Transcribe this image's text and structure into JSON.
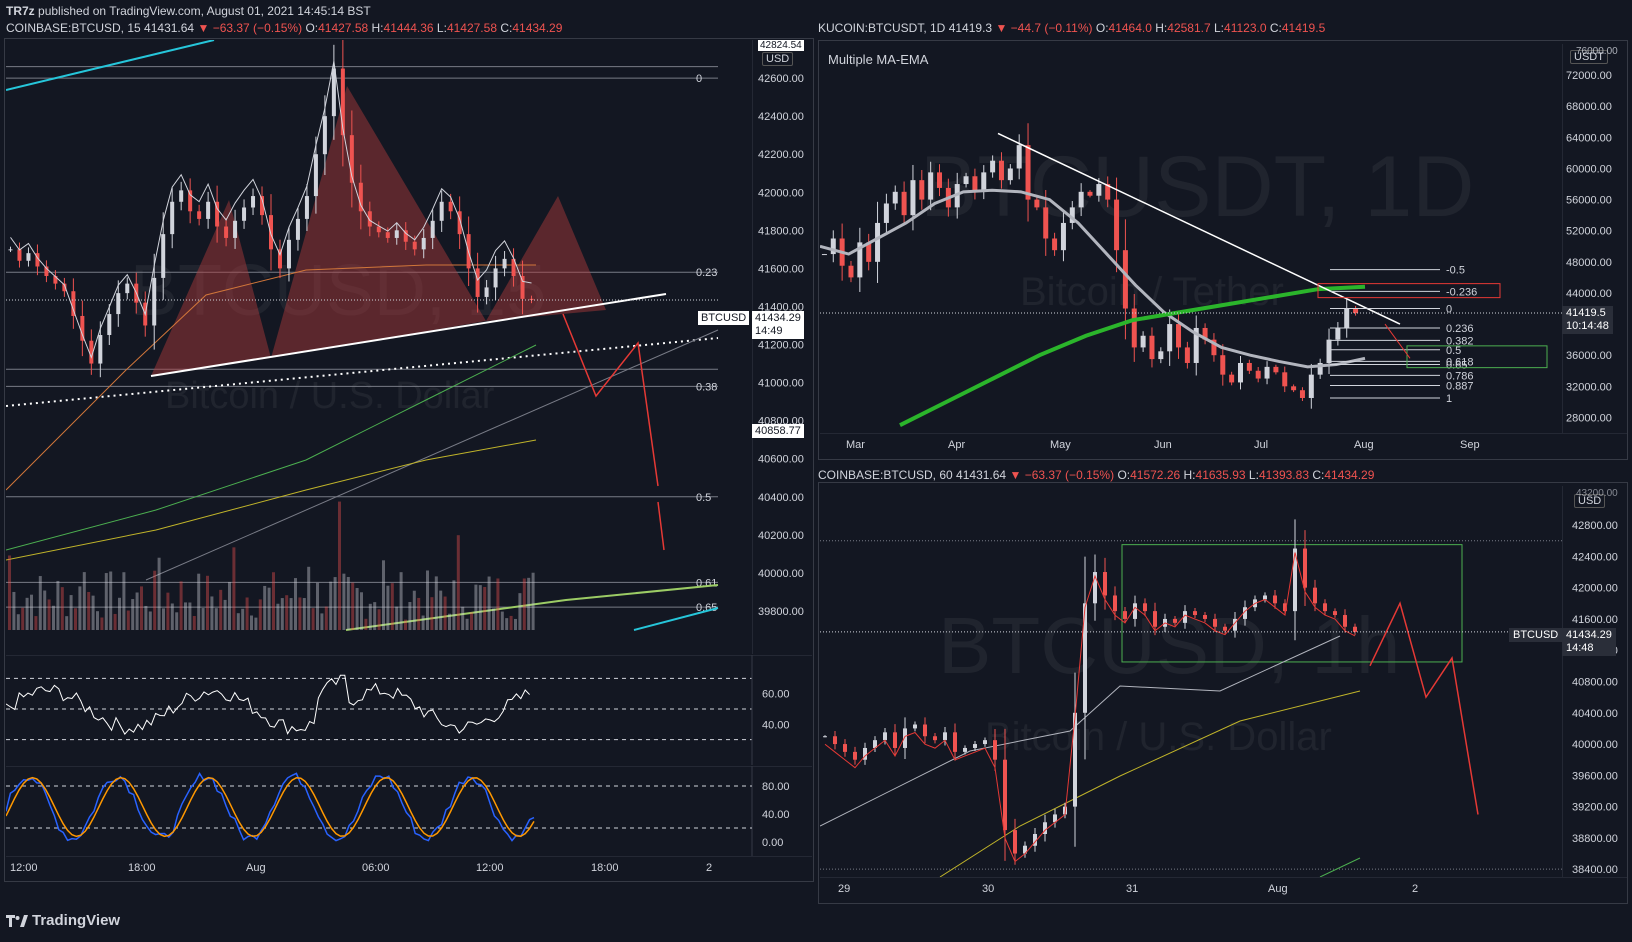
{
  "publish_line": {
    "user": "TR7z",
    "text": "published on TradingView.com, August 01, 2021 14:45:14 BST"
  },
  "brand": "TradingView",
  "colors": {
    "bg": "#131722",
    "up": "#d1d4dc",
    "down": "#ef5350",
    "accent": "#2962ff"
  },
  "icons": [
    "down-triangle-icon",
    "tradingview-logo-icon"
  ],
  "panel_left": {
    "header": {
      "symbol": "COINBASE:BTCUSD, 15",
      "last": "41431.64",
      "change": "−63.37 (−0.15%)",
      "o_label": "O:",
      "o": "41427.58",
      "h_label": "H:",
      "h": "41444.36",
      "l_label": "L:",
      "l": "41427.58",
      "c_label": "C:",
      "c": "41434.29"
    },
    "watermark": {
      "symbol": "BTCUSD, 15",
      "desc": "Bitcoin / U.S. Dollar"
    },
    "currency": "USD",
    "price_ticks": [
      "42600.00",
      "42400.00",
      "42200.00",
      "42000.00",
      "41800.00",
      "41600.00",
      "41400.00",
      "41200.00",
      "41000.00",
      "40800.00",
      "40600.00",
      "40400.00",
      "40200.00",
      "40000.00",
      "39800.00"
    ],
    "top_tick": "42824.54",
    "last_price": {
      "ticker": "BTCUSD",
      "price": "41434.29",
      "countdown": "14:49"
    },
    "marked_price": "40858.77",
    "fib_labels": [
      "0",
      "0.23",
      "0.38",
      "0.5",
      "0.61",
      "0.65"
    ],
    "rsi_ticks": [
      "60.00",
      "40.00"
    ],
    "stoch_ticks": [
      "80.00",
      "40.00",
      "0.00"
    ],
    "time_ticks": [
      "12:00",
      "18:00",
      "Aug",
      "06:00",
      "12:00",
      "18:00",
      "2"
    ]
  },
  "panel_right_top": {
    "header": {
      "symbol": "KUCOIN:BTCUSDT, 1D",
      "last": "41419.3",
      "change": "−44.7 (−0.11%)",
      "o_label": "O:",
      "o": "41464.0",
      "h_label": "H:",
      "h": "42581.7",
      "l_label": "L:",
      "l": "41123.0",
      "c_label": "C:",
      "c": "41419.5"
    },
    "indicator": "Multiple MA-EMA",
    "watermark": {
      "symbol": "BTCUSDT, 1D",
      "desc": "Bitcoin / Tether"
    },
    "currency": "USDT",
    "top_tick": "76000.00",
    "price_ticks": [
      "72000.00",
      "68000.00",
      "64000.00",
      "60000.00",
      "56000.00",
      "52000.00",
      "48000.00",
      "44000.00",
      "40000.00",
      "36000.00",
      "32000.00",
      "28000.00"
    ],
    "last_price": {
      "price": "41419.5",
      "countdown": "10:14:48"
    },
    "fib_labels": [
      "-0.5",
      "-0.236",
      "0",
      "0.236",
      "0.382",
      "0.5",
      "0.618",
      "0.65",
      "0.786",
      "0.887",
      "1"
    ],
    "time_ticks": [
      "Mar",
      "Apr",
      "May",
      "Jun",
      "Jul",
      "Aug",
      "Sep"
    ]
  },
  "panel_right_bottom": {
    "header": {
      "symbol": "COINBASE:BTCUSD, 60",
      "last": "41431.64",
      "change": "−63.37 (−0.15%)",
      "o_label": "O:",
      "o": "41572.26",
      "h_label": "H:",
      "h": "41635.93",
      "l_label": "L:",
      "l": "41393.83",
      "c_label": "C:",
      "c": "41434.29"
    },
    "watermark": {
      "symbol": "BTCUSD, 1h",
      "desc": "Bitcoin / U.S. Dollar"
    },
    "currency": "USD",
    "top_tick": "43200.00",
    "price_ticks": [
      "42800.00",
      "42400.00",
      "42000.00",
      "41600.00",
      "41200.00",
      "40800.00",
      "40400.00",
      "40000.00",
      "39600.00",
      "39200.00",
      "38800.00",
      "38400.00"
    ],
    "last_price": {
      "ticker": "BTCUSD",
      "price": "41434.29",
      "countdown": "14:48"
    },
    "time_ticks": [
      "29",
      "30",
      "31",
      "Aug",
      "2"
    ]
  },
  "chart_data": [
    {
      "type": "candlestick",
      "title": "COINBASE:BTCUSD, 15",
      "ylim": [
        39700,
        42800
      ],
      "ohlc_last": {
        "o": 41427.58,
        "h": 41444.36,
        "l": 41427.58,
        "c": 41434.29
      },
      "closes": [
        41700,
        41640,
        41680,
        41610,
        41560,
        41520,
        41480,
        41350,
        41220,
        41100,
        41250,
        41360,
        41470,
        41520,
        41420,
        41300,
        41550,
        41780,
        41950,
        42010,
        41900,
        41860,
        41950,
        41820,
        41760,
        41850,
        41920,
        41980,
        41880,
        41700,
        41600,
        41750,
        41860,
        41980,
        42200,
        42400,
        42650,
        42300,
        42050,
        41900,
        41820,
        41790,
        41760,
        41800,
        41740,
        41700,
        41760,
        41850,
        41950,
        41900,
        41780,
        41600,
        41450,
        41500,
        41600,
        41650,
        41560,
        41440,
        41434
      ],
      "fib_levels": {
        "0": 42600,
        "0.5": 40400
      },
      "trendlines": [
        "head-and-shoulders neckline",
        "ascending support",
        "dotted projection"
      ],
      "indicators": [
        "RSI",
        "Stochastic RSI",
        "Volume"
      ],
      "rsi_range": [
        30,
        70
      ],
      "stoch_range": [
        0,
        100
      ]
    },
    {
      "type": "candlestick",
      "title": "KUCOIN:BTCUSDT, 1D",
      "ylim": [
        26000,
        76000
      ],
      "ohlc_last": {
        "o": 41464.0,
        "h": 42581.7,
        "l": 41123.0,
        "c": 41419.5
      },
      "closes": [
        49000,
        51000,
        47500,
        46000,
        50500,
        48000,
        53000,
        55500,
        57000,
        54000,
        58500,
        56000,
        59500,
        57500,
        55000,
        58000,
        59000,
        57000,
        59500,
        61000,
        58500,
        60000,
        63000,
        56000,
        55000,
        51000,
        49500,
        53000,
        55000,
        57000,
        56500,
        58000,
        56000,
        49500,
        42000,
        37000,
        38500,
        35500,
        36500,
        40000,
        37000,
        35000,
        39500,
        38000,
        36000,
        33500,
        32500,
        35000,
        34000,
        33000,
        34500,
        33800,
        32000,
        31500,
        30500,
        33500,
        35000,
        38000,
        39500,
        42000,
        41419
      ],
      "ma_thin_grey": [
        50000,
        49000,
        51000,
        53000,
        55500,
        57000,
        57200,
        57000,
        56000,
        53000,
        49000,
        45000,
        41500,
        39000,
        37000,
        36000,
        35200,
        34500,
        34800,
        35600
      ],
      "ma_green_200": [
        27000,
        30000,
        33000,
        36000,
        38500,
        40500,
        41500,
        42500,
        43500,
        44500,
        44800
      ],
      "fib_levels": {
        "-0.5": 47000,
        "-0.236": 44200,
        "0": 42000,
        "0.236": 39500,
        "0.382": 37900,
        "0.5": 36700,
        "0.618": 35200,
        "0.65": 34800,
        "0.786": 33400,
        "0.887": 32100,
        "1": 30500
      }
    },
    {
      "type": "candlestick",
      "title": "COINBASE:BTCUSD, 60",
      "ylim": [
        38300,
        43300
      ],
      "ohlc_last": {
        "o": 41572.26,
        "h": 41635.93,
        "l": 41393.83,
        "c": 41434.29
      },
      "closes": [
        40100,
        40000,
        39900,
        39800,
        39950,
        40050,
        40150,
        39950,
        40200,
        40250,
        40100,
        40050,
        40150,
        39900,
        39950,
        40000,
        40050,
        39800,
        38900,
        38600,
        38700,
        38850,
        39000,
        39100,
        39200,
        40400,
        41800,
        42200,
        41900,
        41700,
        41600,
        41800,
        41700,
        41500,
        41600,
        41550,
        41700,
        41650,
        41600,
        41500,
        41450,
        41600,
        41750,
        41850,
        41900,
        41800,
        41700,
        42500,
        42000,
        41800,
        41700,
        41650,
        41500,
        41434
      ],
      "range_box": {
        "top": 42550,
        "bottom": 41050
      },
      "projection": [
        41000,
        41800,
        40600,
        41100,
        39100
      ]
    }
  ]
}
